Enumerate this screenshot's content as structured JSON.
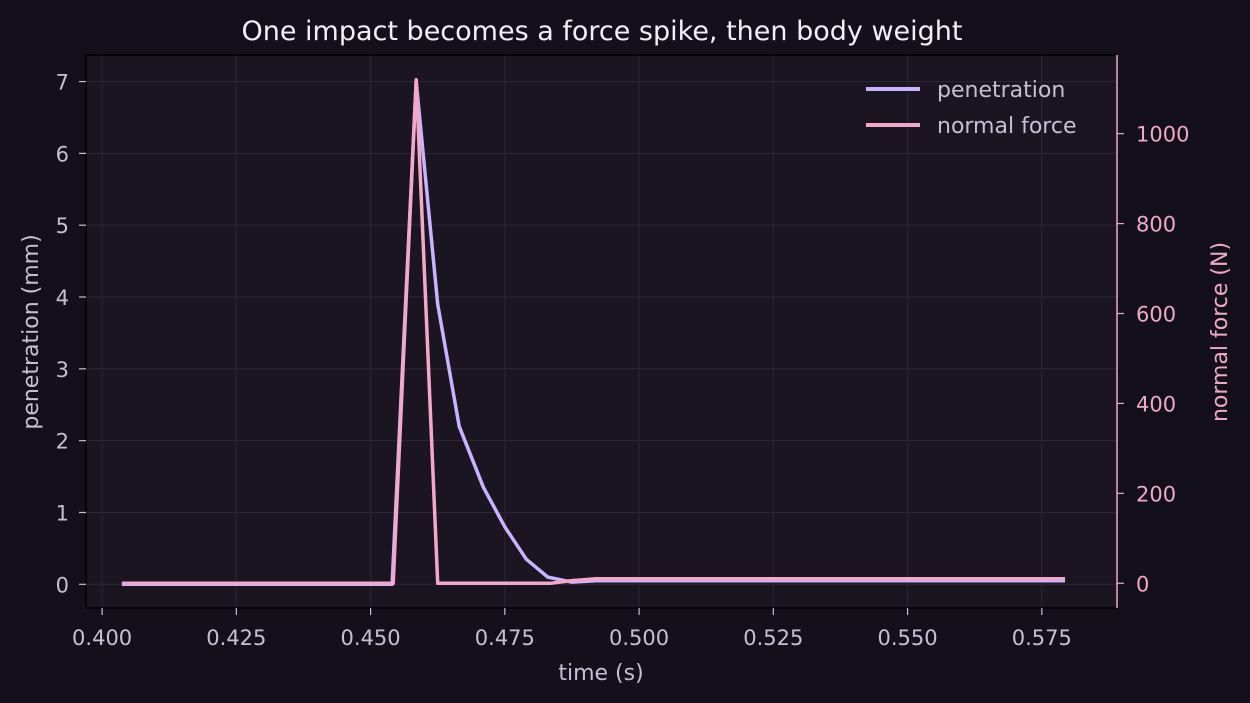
{
  "chart_data": {
    "type": "line",
    "title": "One impact becomes a force spike, then body weight",
    "xlabel": "time (s)",
    "ylabel": "penetration (mm)",
    "y2label": "normal force (N)",
    "xlim": [
      0.397,
      0.589
    ],
    "ylim": [
      -0.33,
      7.37
    ],
    "y2lim": [
      -55,
      1175
    ],
    "xticks": [
      "0.400",
      "0.425",
      "0.450",
      "0.475",
      "0.500",
      "0.525",
      "0.550",
      "0.575"
    ],
    "yticks": [
      "0",
      "1",
      "2",
      "3",
      "4",
      "5",
      "6",
      "7"
    ],
    "y2ticks": [
      "0",
      "200",
      "400",
      "600",
      "800",
      "1000"
    ],
    "grid": true,
    "legend_position": "top-right",
    "colors": {
      "penetration": "#c9b2ff",
      "force": "#f3a7c9",
      "background": "#13101b",
      "plot": "#1a1521"
    },
    "series": [
      {
        "name": "penetration",
        "axis": "left",
        "x": [
          0.404,
          0.454,
          0.4585,
          0.4625,
          0.4665,
          0.471,
          0.475,
          0.479,
          0.483,
          0.4875,
          0.492,
          0.5,
          0.579
        ],
        "y": [
          0,
          0,
          7.0,
          3.9,
          2.2,
          1.35,
          0.8,
          0.35,
          0.1,
          0.03,
          0.05,
          0.05,
          0.05
        ]
      },
      {
        "name": "normal force",
        "axis": "right",
        "x": [
          0.404,
          0.4542,
          0.4585,
          0.4625,
          0.4835,
          0.4875,
          0.492,
          0.579
        ],
        "y": [
          0,
          0,
          1120,
          0,
          0,
          6,
          10,
          10
        ]
      }
    ]
  }
}
